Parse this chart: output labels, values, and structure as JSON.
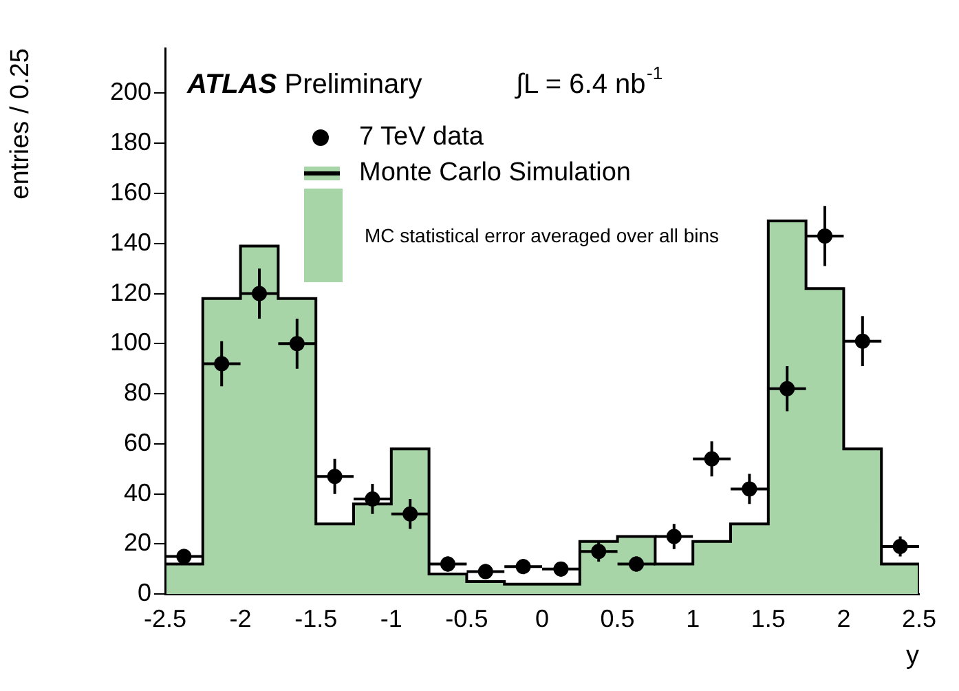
{
  "chart_data": {
    "type": "histogram",
    "xlabel": "y",
    "ylabel": "entries / 0.25",
    "bins": [
      -2.5,
      -2.25,
      -2.0,
      -1.75,
      -1.5,
      -1.25,
      -1.0,
      -0.75,
      -0.5,
      -0.25,
      0.0,
      0.25,
      0.5,
      0.75,
      1.0,
      1.25,
      1.5,
      1.75,
      2.0,
      2.25,
      2.5
    ],
    "series": [
      {
        "name": "Monte Carlo Simulation",
        "color": "#a8d5a8",
        "values": [
          12,
          118,
          139,
          118,
          28,
          36,
          58,
          8,
          5,
          4,
          4,
          21,
          23,
          12,
          21,
          28,
          149,
          122,
          58,
          12
        ]
      },
      {
        "name": "7 TeV data",
        "type": "scatter",
        "color": "#000000",
        "x": [
          -2.375,
          -2.125,
          -1.875,
          -1.625,
          -1.375,
          -1.125,
          -0.875,
          -0.625,
          -0.375,
          -0.125,
          0.125,
          0.375,
          0.625,
          0.875,
          1.125,
          1.375,
          1.625,
          1.875,
          2.125,
          2.375
        ],
        "values": [
          15,
          92,
          120,
          100,
          47,
          38,
          32,
          12,
          9,
          11,
          10,
          17,
          12,
          23,
          54,
          42,
          82,
          143,
          101,
          19
        ],
        "errors": [
          3,
          9,
          10,
          10,
          7,
          6,
          6,
          3,
          3,
          3,
          3,
          4,
          3,
          5,
          7,
          6,
          9,
          12,
          10,
          4
        ],
        "xerrors": [
          0.125,
          0.125,
          0.125,
          0.125,
          0.125,
          0.125,
          0.125,
          0.125,
          0.125,
          0.125,
          0.125,
          0.125,
          0.125,
          0.125,
          0.125,
          0.125,
          0.125,
          0.125,
          0.125,
          0.125
        ]
      }
    ],
    "annotations": [
      "ATLAS Preliminary",
      "∫L = 6.4 nb$^{-1}$",
      "MC statistical error averaged over all bins"
    ],
    "xlim": [
      -2.5,
      2.5
    ],
    "xticks": [
      -2.5,
      -2,
      -1.5,
      -1,
      -0.5,
      0,
      0.5,
      1,
      1.5,
      2,
      2.5
    ],
    "ylim": [
      0,
      218
    ],
    "yticks": [
      0,
      20,
      40,
      60,
      80,
      100,
      120,
      140,
      160,
      180,
      200
    ],
    "grid": false,
    "legend": "top",
    "marker": "circle"
  }
}
